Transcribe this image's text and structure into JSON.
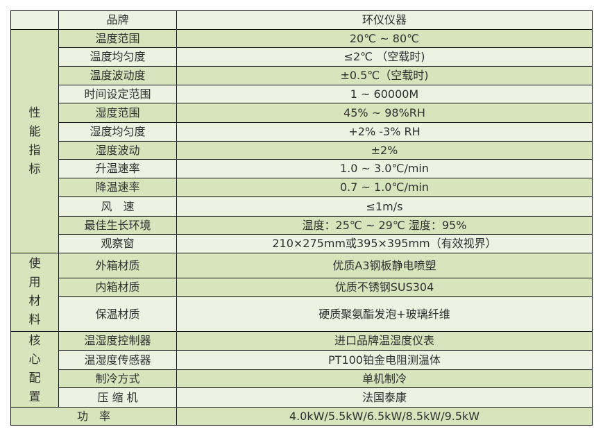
{
  "header": {
    "label": "品牌",
    "value": "环仪仪器"
  },
  "groups": [
    {
      "title": [
        "性",
        "能",
        "指",
        "标"
      ],
      "rows": [
        {
          "label": "温度范围",
          "value": "20℃ ~ 80℃"
        },
        {
          "label": "温度均匀度",
          "value": "≤2℃ （空载时)"
        },
        {
          "label": "温度波动度",
          "value": "±0.5℃（空载时)"
        },
        {
          "label": "时间设定范围",
          "value": "1 ~ 60000M"
        },
        {
          "label": "湿度范围",
          "value": "45% ~ 98%RH"
        },
        {
          "label": "湿度均匀度",
          "value": "+2% -3% RH"
        },
        {
          "label": "湿度波动",
          "value": "±2%"
        },
        {
          "label": "升温速率",
          "value": "1.0 ~ 3.0℃/min"
        },
        {
          "label": "降温速率",
          "value": "0.7 ~ 1.0℃/min"
        },
        {
          "label": "风　速",
          "value": "≤1m/s"
        },
        {
          "label": "最佳生长环境",
          "value": "温度：25℃ ~ 29℃ 湿度：95%"
        },
        {
          "label": "观察窗",
          "value": "210×275mm或395×395mm（有效视界）"
        }
      ]
    },
    {
      "title": [
        "使",
        "用",
        "材",
        "料"
      ],
      "rows": [
        {
          "label": "外箱材质",
          "value": "优质A3钢板静电喷塑"
        },
        {
          "label": "内箱材质",
          "value": "优质不锈钢SUS304"
        },
        {
          "label": "保温材质",
          "value": "硬质聚氨酯发泡+玻璃纤维"
        }
      ]
    },
    {
      "title": [
        "核",
        "心",
        "配",
        "置"
      ],
      "rows": [
        {
          "label": "温湿度控制器",
          "value": "进口品牌温湿度仪表"
        },
        {
          "label": "温湿度传感器",
          "value": "PT100铂金电阻测温体"
        },
        {
          "label": "制冷方式",
          "value": "单机制冷"
        },
        {
          "label": "压 缩 机",
          "value": "法国泰康"
        }
      ]
    }
  ],
  "footer": {
    "label": "功　率",
    "value": "4.0kW/5.5kW/6.5kW/8.5kW/9.5kW"
  },
  "colors": {
    "green": "#d8e4bc",
    "light": "#edf2e2",
    "border": "#111111"
  }
}
